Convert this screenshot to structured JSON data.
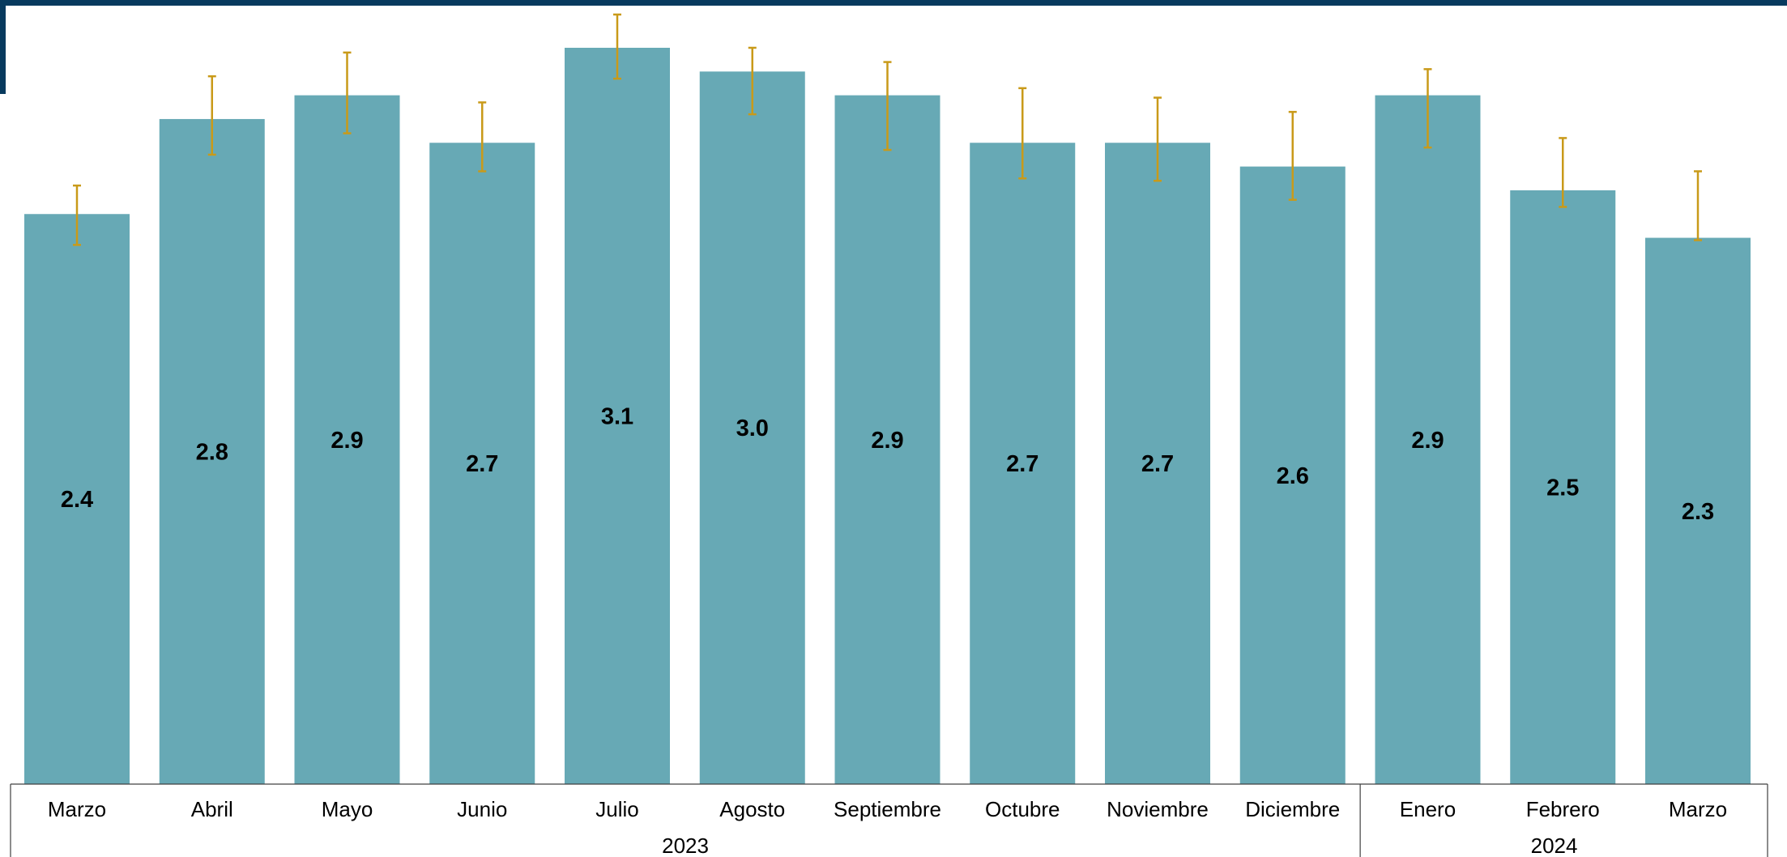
{
  "colors": {
    "bar": "#67a9b5",
    "error_bar": "#c99a19",
    "frame": "#073a5e",
    "axis": "#404040"
  },
  "chart_data": {
    "type": "bar",
    "categories": [
      "Marzo",
      "Abril",
      "Mayo",
      "Junio",
      "Julio",
      "Agosto",
      "Septiembre",
      "Octubre",
      "Noviembre",
      "Diciembre",
      "Enero",
      "Febrero",
      "Marzo"
    ],
    "values": [
      2.4,
      2.8,
      2.9,
      2.7,
      3.1,
      3.0,
      2.9,
      2.7,
      2.7,
      2.6,
      2.9,
      2.5,
      2.3
    ],
    "value_labels": [
      "2.4",
      "2.8",
      "2.9",
      "2.7",
      "3.1",
      "3.0",
      "2.9",
      "2.7",
      "2.7",
      "2.6",
      "2.9",
      "2.5",
      "2.3"
    ],
    "error_low": [
      2.27,
      2.65,
      2.74,
      2.58,
      2.97,
      2.82,
      2.67,
      2.55,
      2.54,
      2.46,
      2.68,
      2.43,
      2.29
    ],
    "error_high": [
      2.52,
      2.98,
      3.08,
      2.87,
      3.24,
      3.1,
      3.04,
      2.93,
      2.89,
      2.83,
      3.01,
      2.72,
      2.58
    ],
    "groups": [
      {
        "label": "2023",
        "start": 0,
        "end": 9
      },
      {
        "label": "2024",
        "start": 10,
        "end": 12
      }
    ],
    "ylim": [
      0,
      3.25
    ],
    "grid": false,
    "legend": "none"
  }
}
